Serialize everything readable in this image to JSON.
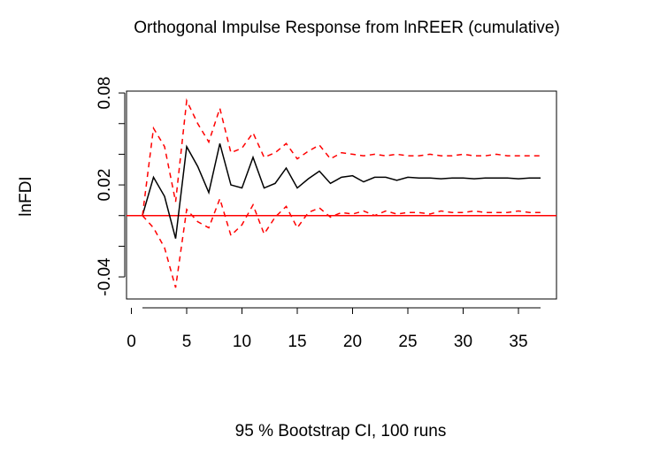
{
  "chart_data": {
    "type": "line",
    "title": "Orthogonal Impulse Response from lnREER (cumulative)",
    "y_label": "lnFDI",
    "x_label": "95 % Bootstrap CI,  100 runs",
    "x": [
      1,
      2,
      3,
      4,
      5,
      6,
      7,
      8,
      9,
      10,
      11,
      12,
      13,
      14,
      15,
      16,
      17,
      18,
      19,
      20,
      21,
      22,
      23,
      24,
      25,
      26,
      27,
      28,
      29,
      30,
      31,
      32,
      33,
      34,
      35,
      36,
      37
    ],
    "series": [
      {
        "color": "#000000",
        "dash": false,
        "values": [
          0,
          0.025,
          0.0125,
          -0.015,
          0.045,
          0.032,
          0.015,
          0.047,
          0.02,
          0.018,
          0.038,
          0.018,
          0.021,
          0.031,
          0.018,
          0.024,
          0.029,
          0.021,
          0.025,
          0.026,
          0.022,
          0.025,
          0.025,
          0.023,
          0.025,
          0.0245,
          0.0245,
          0.024,
          0.0245,
          0.0245,
          0.024,
          0.0245,
          0.0245,
          0.0245,
          0.024,
          0.0245,
          0.0245
        ]
      },
      {
        "color": "#ff0000",
        "dash": true,
        "values": [
          0,
          0.057,
          0.045,
          0.009,
          0.075,
          0.06,
          0.048,
          0.07,
          0.041,
          0.044,
          0.054,
          0.038,
          0.041,
          0.047,
          0.037,
          0.042,
          0.046,
          0.037,
          0.041,
          0.04,
          0.039,
          0.04,
          0.039,
          0.04,
          0.039,
          0.039,
          0.04,
          0.039,
          0.039,
          0.04,
          0.039,
          0.039,
          0.04,
          0.039,
          0.039,
          0.039,
          0.039
        ]
      },
      {
        "color": "#ff0000",
        "dash": true,
        "values": [
          0,
          -0.008,
          -0.021,
          -0.047,
          0.004,
          -0.004,
          -0.008,
          0.011,
          -0.013,
          -0.006,
          0.007,
          -0.012,
          -0.001,
          0.006,
          -0.008,
          0.002,
          0.005,
          -0.001,
          0.002,
          0.001,
          0.003,
          0,
          0.003,
          0.001,
          0.002,
          0.002,
          0.001,
          0.003,
          0.002,
          0.002,
          0.003,
          0.002,
          0.002,
          0.002,
          0.003,
          0.002,
          0.002
        ]
      }
    ],
    "hline": {
      "value": 0,
      "color": "#ff0000"
    },
    "xlim": [
      -0.44,
      38.44
    ],
    "xticks": [
      0,
      5,
      10,
      15,
      20,
      25,
      30,
      35
    ],
    "ylim": [
      -0.0544,
      0.0812
    ],
    "yticks": [
      -0.04,
      0.02,
      0.08
    ],
    "y_minor_ticks": [
      -0.02,
      0,
      0.04,
      0.06
    ]
  }
}
